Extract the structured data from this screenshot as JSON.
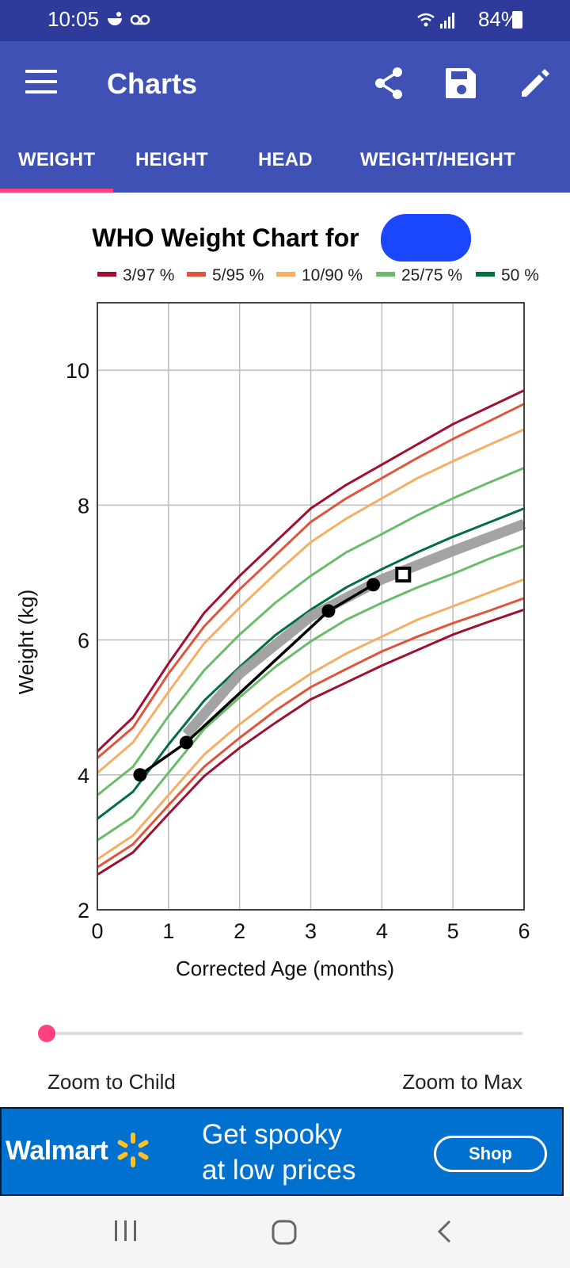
{
  "status_bar": {
    "time": "10:05",
    "battery": "84%"
  },
  "app_bar": {
    "title": "Charts",
    "icons": [
      "menu-icon",
      "share-icon",
      "save-icon",
      "edit-icon"
    ]
  },
  "tabs": [
    {
      "label": "WEIGHT",
      "selected": true
    },
    {
      "label": "HEIGHT",
      "selected": false
    },
    {
      "label": "HEAD",
      "selected": false
    },
    {
      "label": "WEIGHT/HEIGHT",
      "selected": false
    }
  ],
  "colors": {
    "app_bar": "#3f51b5",
    "status_bar": "#2f3b9a",
    "accent": "#ff4081",
    "ad_bg": "#0071ce"
  },
  "chart_data": {
    "type": "line",
    "title": "WHO Weight Chart for",
    "xlabel": "Corrected Age (months)",
    "ylabel": "Weight (kg)",
    "xlim": [
      0,
      6
    ],
    "ylim": [
      2,
      11
    ],
    "xticks": [
      "0",
      "1",
      "2",
      "3",
      "4",
      "5",
      "6"
    ],
    "yticks": [
      "2",
      "4",
      "6",
      "8",
      "10"
    ],
    "grid": true,
    "legend_position": "top",
    "legend": [
      {
        "label": "3/97 %",
        "color": "#a0102f"
      },
      {
        "label": "5/95 %",
        "color": "#e0553a"
      },
      {
        "label": "10/90 %",
        "color": "#f6ae63"
      },
      {
        "label": "25/75 %",
        "color": "#69bd68"
      },
      {
        "label": "50 %",
        "color": "#00703c"
      }
    ],
    "x": [
      0,
      0.5,
      1,
      1.5,
      2,
      2.5,
      3,
      3.5,
      4,
      4.5,
      5,
      5.5,
      6
    ],
    "series": [
      {
        "name": "3/97 %",
        "color": "#a0102f",
        "values": [
          4.35,
          4.85,
          5.65,
          6.4,
          6.95,
          7.45,
          7.95,
          8.3,
          8.6,
          8.9,
          9.2,
          9.45,
          9.7
        ]
      },
      {
        "name": "5/95 %",
        "color": "#e0553a",
        "values": [
          4.25,
          4.7,
          5.5,
          6.2,
          6.75,
          7.25,
          7.75,
          8.1,
          8.4,
          8.7,
          8.98,
          9.24,
          9.5
        ]
      },
      {
        "name": "10/90 %",
        "color": "#f6ae63",
        "values": [
          4.03,
          4.48,
          5.23,
          5.95,
          6.48,
          6.98,
          7.45,
          7.8,
          8.1,
          8.4,
          8.65,
          8.89,
          9.12
        ]
      },
      {
        "name": "25/75 %",
        "color": "#69bd68",
        "values": [
          3.7,
          4.12,
          4.87,
          5.55,
          6.08,
          6.55,
          6.95,
          7.3,
          7.57,
          7.85,
          8.1,
          8.33,
          8.55
        ]
      },
      {
        "name": "50 %",
        "color": "#00703c",
        "values": [
          3.35,
          3.75,
          4.45,
          5.1,
          5.6,
          6.07,
          6.45,
          6.78,
          7.05,
          7.3,
          7.53,
          7.74,
          7.95
        ]
      },
      {
        "name": "25/75 %",
        "color": "#69bd68",
        "values": [
          3.03,
          3.38,
          4.03,
          4.68,
          5.15,
          5.6,
          5.98,
          6.3,
          6.55,
          6.78,
          6.98,
          7.2,
          7.4
        ]
      },
      {
        "name": "10/90 %",
        "color": "#f6ae63",
        "values": [
          2.75,
          3.1,
          3.7,
          4.3,
          4.75,
          5.15,
          5.5,
          5.8,
          6.05,
          6.3,
          6.5,
          6.7,
          6.9
        ]
      },
      {
        "name": "5/95 %",
        "color": "#e0553a",
        "values": [
          2.63,
          2.97,
          3.55,
          4.12,
          4.55,
          4.95,
          5.3,
          5.57,
          5.83,
          6.05,
          6.25,
          6.43,
          6.62
        ]
      },
      {
        "name": "3/97 %",
        "color": "#a0102f",
        "values": [
          2.52,
          2.85,
          3.42,
          3.98,
          4.4,
          4.77,
          5.12,
          5.37,
          5.62,
          5.85,
          6.08,
          6.27,
          6.45
        ]
      }
    ],
    "projection": {
      "color": "#999999",
      "x": [
        1.25,
        2,
        3,
        4,
        5,
        6
      ],
      "y": [
        4.6,
        5.5,
        6.35,
        6.9,
        7.32,
        7.72
      ]
    },
    "child_points": {
      "x": [
        0.6,
        1.25,
        3.25,
        3.88
      ],
      "y": [
        4.0,
        4.48,
        6.43,
        6.82
      ]
    },
    "projected_point": {
      "x": 4.3,
      "y": 6.97
    }
  },
  "zoom": {
    "left_label": "Zoom to Child",
    "right_label": "Zoom to Max",
    "value": 0
  },
  "ad": {
    "brand": "Walmart",
    "text_line1": "Get spooky",
    "text_line2": "at low prices",
    "button": "Shop"
  },
  "nav_bar": {
    "icons": [
      "recents-icon",
      "home-icon",
      "back-icon"
    ]
  }
}
